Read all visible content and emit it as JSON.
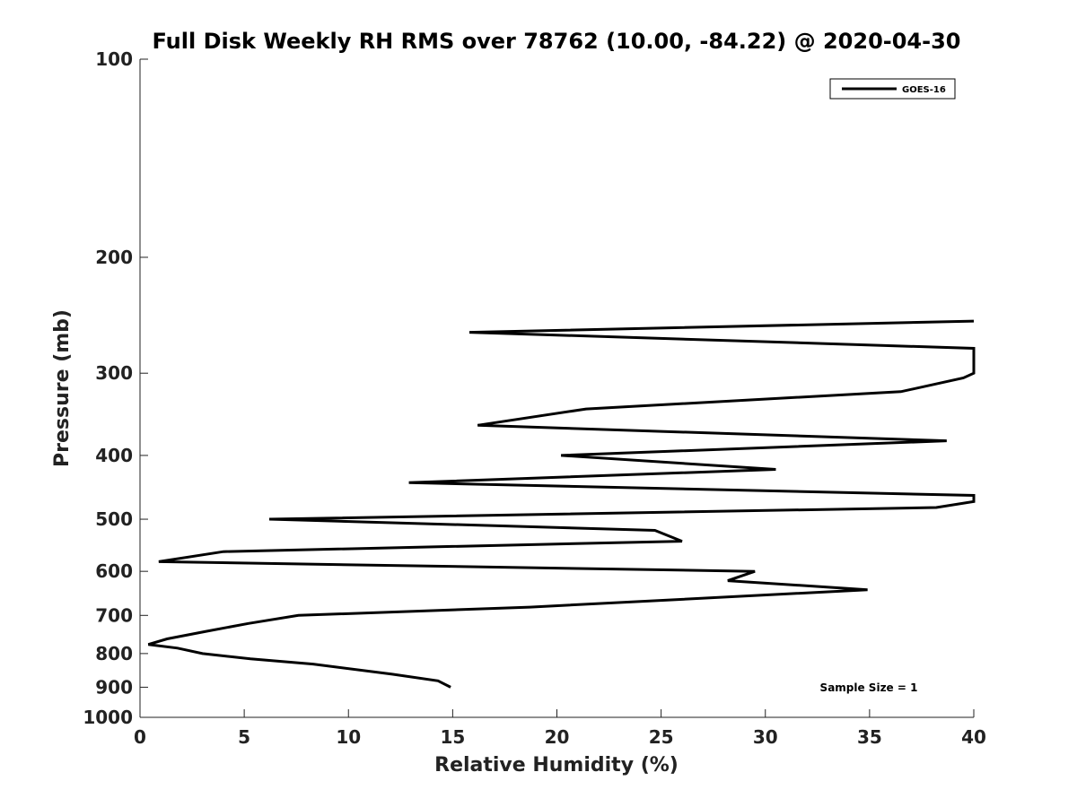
{
  "chart_data": {
    "type": "line",
    "title": "Full Disk Weekly RH RMS over 78762 (10.00, -84.22) @ 2020-04-30",
    "xlabel": "Relative Humidity (%)",
    "ylabel": "Pressure (mb)",
    "xlim": [
      0,
      40
    ],
    "ylim": [
      1000,
      100
    ],
    "yscale": "log",
    "xticks": [
      0,
      5,
      10,
      15,
      20,
      25,
      30,
      35,
      40
    ],
    "yticks": [
      100,
      200,
      300,
      400,
      500,
      600,
      700,
      800,
      900,
      1000
    ],
    "grid": false,
    "legend_position": "top-right",
    "annotation": "Sample Size = 1",
    "series": [
      {
        "name": "GOES-16",
        "color": "#000000",
        "x": [
          14.9,
          14.3,
          12.1,
          8.3,
          5.3,
          3.0,
          1.8,
          0.4,
          1.3,
          3.2,
          5.2,
          7.6,
          18.7,
          34.9,
          28.2,
          29.5,
          0.9,
          4.0,
          26.0,
          24.7,
          6.2,
          38.2,
          40.0,
          40.0,
          12.9,
          30.5,
          20.2,
          38.7,
          16.2,
          21.4,
          36.5,
          39.5,
          40.0,
          40.0,
          15.8,
          40.0
        ],
        "y": [
          900,
          880,
          860,
          830,
          815,
          800,
          785,
          775,
          760,
          740,
          720,
          700,
          680,
          640,
          620,
          600,
          580,
          560,
          540,
          520,
          500,
          480,
          470,
          460,
          440,
          420,
          400,
          380,
          360,
          340,
          320,
          305,
          300,
          275,
          260,
          250
        ]
      }
    ]
  }
}
